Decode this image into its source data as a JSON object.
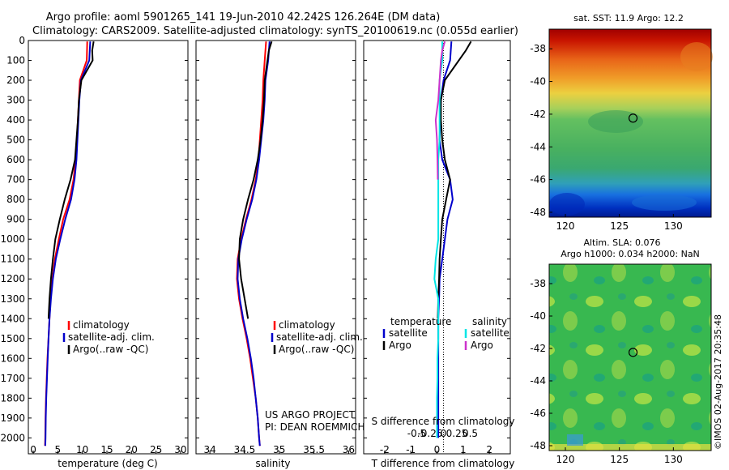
{
  "header": {
    "line1": "Argo profile: aoml 5901265_141 19-Jun-2010 42.242S 126.264E (DM data)",
    "line2": "Climatology: CARS2009. Satellite-adjusted climatology: synTS_20100619.nc (0.055d earlier)"
  },
  "colors": {
    "climatology": "#ff0000",
    "satellite": "#0000cc",
    "argo": "#000000",
    "sat_salinity": "#00e5e5",
    "argo_salinity": "#cc33cc"
  },
  "chart_data": [
    {
      "type": "line",
      "name": "temperature-profile",
      "xlabel": "temperature (deg C)",
      "ylabel": "",
      "xlim": [
        -1,
        31.5
      ],
      "ylim": [
        2080,
        0
      ],
      "xticks": [
        0,
        5,
        10,
        15,
        20,
        25,
        30
      ],
      "yticks": [
        0,
        100,
        200,
        300,
        400,
        500,
        600,
        700,
        800,
        900,
        1000,
        1100,
        1200,
        1300,
        1400,
        1500,
        1600,
        1700,
        1800,
        1900,
        2000
      ],
      "legend": [
        "climatology",
        "satellite-adj. clim.",
        "Argo(..raw -QC)"
      ],
      "series": [
        {
          "key": "climatology",
          "x": [
            11.0,
            10.9,
            9.5,
            9.3,
            9.1,
            8.9,
            8.6,
            8.2,
            7.4,
            6.1,
            5.2,
            4.4,
            3.9,
            3.5,
            3.3,
            3.1,
            2.9,
            2.75,
            2.6,
            2.5,
            2.45,
            2.4
          ],
          "y": [
            5,
            100,
            200,
            300,
            400,
            500,
            600,
            700,
            800,
            900,
            1000,
            1100,
            1200,
            1300,
            1400,
            1500,
            1600,
            1700,
            1800,
            1900,
            2000,
            2040
          ]
        },
        {
          "key": "satellite",
          "x": [
            11.6,
            11.4,
            9.7,
            9.4,
            9.2,
            9.0,
            8.8,
            8.4,
            7.7,
            6.5,
            5.5,
            4.6,
            4.0,
            3.6,
            3.3,
            3.1,
            2.95,
            2.8,
            2.65,
            2.55,
            2.5,
            2.45
          ],
          "y": [
            5,
            100,
            200,
            300,
            400,
            500,
            600,
            700,
            800,
            900,
            1000,
            1100,
            1200,
            1300,
            1400,
            1500,
            1600,
            1700,
            1800,
            1900,
            2000,
            2040
          ]
        },
        {
          "key": "argo",
          "x": [
            12.3,
            12.0,
            12.1,
            9.8,
            9.3,
            9.1,
            8.8,
            8.5,
            7.6,
            6.4,
            5.4,
            4.5,
            4.0,
            3.6,
            3.3,
            3.1
          ],
          "y": [
            5,
            50,
            100,
            200,
            300,
            400,
            500,
            600,
            700,
            800,
            900,
            1000,
            1100,
            1200,
            1300,
            1400
          ]
        }
      ]
    },
    {
      "type": "line",
      "name": "salinity-profile",
      "xlabel": "salinity",
      "ylabel": "",
      "xlim": [
        33.8,
        36.1
      ],
      "ylim": [
        2080,
        0
      ],
      "xticks": [
        34,
        34.5,
        35,
        35.5,
        36
      ],
      "legend": [
        "climatology",
        "satellite-adj. clim.",
        "Argo(..raw -QC)"
      ],
      "annotation": [
        "US ARGO PROJECT",
        "PI: DEAN ROEMMICH"
      ],
      "series": [
        {
          "key": "climatology",
          "x": [
            34.81,
            34.79,
            34.77,
            34.76,
            34.74,
            34.72,
            34.7,
            34.66,
            34.6,
            34.52,
            34.45,
            34.4,
            34.39,
            34.42,
            34.47,
            34.53,
            34.58,
            34.62,
            34.66,
            34.69,
            34.71,
            34.72
          ],
          "y": [
            5,
            100,
            200,
            300,
            400,
            500,
            600,
            700,
            800,
            900,
            1000,
            1100,
            1200,
            1300,
            1400,
            1500,
            1600,
            1700,
            1800,
            1900,
            2000,
            2040
          ]
        },
        {
          "key": "satellite",
          "x": [
            34.86,
            34.84,
            34.8,
            34.79,
            34.77,
            34.74,
            34.71,
            34.67,
            34.61,
            34.53,
            34.46,
            34.41,
            34.4,
            34.43,
            34.48,
            34.54,
            34.59,
            34.63,
            34.66,
            34.69,
            34.71,
            34.72
          ],
          "y": [
            5,
            100,
            200,
            300,
            400,
            500,
            600,
            700,
            800,
            900,
            1000,
            1100,
            1200,
            1300,
            1400,
            1500,
            1600,
            1700,
            1800,
            1900,
            2000,
            2040
          ]
        },
        {
          "key": "argo",
          "x": [
            34.89,
            34.85,
            34.83,
            34.79,
            34.78,
            34.76,
            34.73,
            34.69,
            34.63,
            34.55,
            34.48,
            34.43,
            34.42,
            34.45,
            34.5,
            34.55
          ],
          "y": [
            5,
            50,
            100,
            200,
            300,
            400,
            500,
            600,
            700,
            800,
            900,
            1000,
            1100,
            1200,
            1300,
            1400
          ]
        }
      ]
    },
    {
      "type": "line",
      "name": "difference-profile",
      "xlabel": "T difference from climatology",
      "xlabel2": "S difference from climatology",
      "xlim": [
        -2.8,
        2.8
      ],
      "ylim": [
        2080,
        0
      ],
      "xticks": [
        -2,
        -1,
        0,
        1,
        2
      ],
      "xtick_labels": [
        "-2",
        "-1",
        "0",
        "1",
        "2"
      ],
      "sticks": [
        -0.5,
        -0.25,
        0,
        0.25,
        0.5
      ],
      "stick_labels": [
        "-0.5",
        "-0.25",
        "0",
        "0.25",
        "0.5"
      ],
      "legend": {
        "temperature_title": "temperature",
        "salinity_title": "salinity",
        "t_satellite": "satellite",
        "t_argo": "Argo",
        "s_satellite": "satellite",
        "s_argo": "Argo"
      },
      "series": [
        {
          "key": "t_satellite",
          "x": [
            0.55,
            0.5,
            0.25,
            0.15,
            0.12,
            0.1,
            0.2,
            0.5,
            0.6,
            0.4,
            0.3,
            0.2,
            0.1,
            0.08,
            0.05,
            0.05,
            0.05,
            0.05,
            0.05,
            0.05,
            0.05
          ],
          "y": [
            5,
            100,
            200,
            300,
            400,
            500,
            600,
            700,
            800,
            900,
            1000,
            1100,
            1200,
            1300,
            1400,
            1500,
            1600,
            1700,
            1800,
            1900,
            2000
          ]
        },
        {
          "key": "t_argo",
          "x": [
            1.3,
            1.1,
            0.3,
            0.15,
            0.15,
            0.2,
            0.3,
            0.5,
            0.35,
            0.2,
            0.15,
            0.1,
            0.08,
            0.05,
            0.03
          ],
          "y": [
            5,
            50,
            200,
            300,
            400,
            500,
            600,
            700,
            800,
            900,
            1000,
            1100,
            1200,
            1300,
            1400
          ]
        },
        {
          "key": "s_satellite",
          "x": [
            0.2,
            0.2,
            0.1,
            0.1,
            0.1,
            0.1,
            0.05,
            0.05,
            0.05,
            0.05,
            0.05,
            -0.05,
            -0.1,
            0.05,
            0.05,
            0.05,
            0.02,
            0.02,
            0.0,
            0.0,
            0.0
          ],
          "y": [
            5,
            100,
            200,
            300,
            400,
            500,
            600,
            700,
            800,
            900,
            1000,
            1100,
            1200,
            1300,
            1400,
            1500,
            1600,
            1700,
            1800,
            1900,
            2000
          ]
        },
        {
          "key": "s_argo",
          "x": [
            0.3,
            0.2,
            0.15,
            0.1,
            0.05,
            -0.05,
            0.0,
            0.02,
            0.03
          ],
          "y": [
            5,
            50,
            100,
            200,
            300,
            400,
            500,
            600,
            700
          ]
        }
      ]
    },
    {
      "type": "heatmap",
      "name": "sst-map",
      "title": "sat. SST: 11.9 Argo: 12.2",
      "xticks": [
        120,
        125,
        130
      ],
      "yticks": [
        -38,
        -40,
        -42,
        -44,
        -46,
        -48
      ],
      "xlim": [
        118.5,
        133.5
      ],
      "ylim": [
        -48.3,
        -36.8
      ],
      "marker": {
        "lon": 126.264,
        "lat": -42.242
      }
    },
    {
      "type": "heatmap",
      "name": "sla-map",
      "title": "Altim. SLA: 0.076",
      "title2": "Argo h1000: 0.034 h2000: NaN",
      "xticks": [
        120,
        125,
        130
      ],
      "yticks": [
        -38,
        -40,
        -42,
        -44,
        -46,
        -48
      ],
      "xlim": [
        118.5,
        133.5
      ],
      "ylim": [
        -48.3,
        -36.8
      ],
      "marker": {
        "lon": 126.264,
        "lat": -42.242
      }
    }
  ],
  "footer": {
    "credit": "©IMOS 02-Aug-2017 20:35:48"
  }
}
